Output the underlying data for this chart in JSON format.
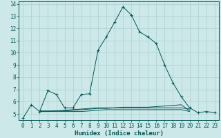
{
  "xlabel": "Humidex (Indice chaleur)",
  "bg_color": "#cce8e8",
  "grid_color": "#aacfcf",
  "line_color": "#005555",
  "xlim": [
    -0.5,
    23.5
  ],
  "ylim": [
    4.5,
    14.2
  ],
  "yticks": [
    5,
    6,
    7,
    8,
    9,
    10,
    11,
    12,
    13,
    14
  ],
  "xticks": [
    0,
    1,
    2,
    3,
    4,
    5,
    6,
    7,
    8,
    9,
    10,
    11,
    12,
    13,
    14,
    15,
    16,
    17,
    18,
    19,
    20,
    21,
    22,
    23
  ],
  "series": [
    {
      "x": [
        0,
        1,
        2,
        3,
        4,
        5,
        6,
        7,
        8,
        9,
        10,
        11,
        12,
        13,
        14,
        15,
        16,
        17,
        18,
        19,
        20,
        21,
        22,
        23
      ],
      "y": [
        4.65,
        5.75,
        5.2,
        6.9,
        6.6,
        5.5,
        5.5,
        6.6,
        6.65,
        10.2,
        11.3,
        12.5,
        13.75,
        13.1,
        11.7,
        11.3,
        10.75,
        9.0,
        7.55,
        6.4,
        5.5,
        5.1,
        5.2,
        5.1
      ],
      "marker": "+"
    },
    {
      "x": [
        2,
        3,
        4,
        5,
        6,
        7,
        8,
        9,
        10,
        11,
        12,
        13,
        14,
        15,
        16,
        17,
        18,
        19,
        20
      ],
      "y": [
        5.25,
        5.25,
        5.25,
        5.25,
        5.3,
        5.35,
        5.4,
        5.45,
        5.45,
        5.5,
        5.55,
        5.55,
        5.55,
        5.55,
        5.6,
        5.65,
        5.7,
        5.75,
        5.25
      ],
      "marker": null
    },
    {
      "x": [
        2,
        3,
        4,
        5,
        6,
        7,
        8,
        9,
        10,
        11,
        12,
        13,
        14,
        15,
        16,
        17,
        18,
        19,
        20
      ],
      "y": [
        5.2,
        5.2,
        5.2,
        5.2,
        5.2,
        5.2,
        5.25,
        5.3,
        5.35,
        5.35,
        5.35,
        5.35,
        5.35,
        5.35,
        5.35,
        5.35,
        5.35,
        5.35,
        5.2
      ],
      "marker": null
    },
    {
      "x": [
        2,
        3,
        4,
        5,
        6,
        7,
        8,
        9,
        10,
        11,
        12,
        13,
        14,
        15,
        16,
        17,
        18,
        19,
        20
      ],
      "y": [
        5.2,
        5.2,
        5.25,
        5.3,
        5.35,
        5.4,
        5.45,
        5.5,
        5.5,
        5.5,
        5.5,
        5.5,
        5.5,
        5.5,
        5.5,
        5.5,
        5.5,
        5.5,
        5.4
      ],
      "marker": null
    }
  ]
}
